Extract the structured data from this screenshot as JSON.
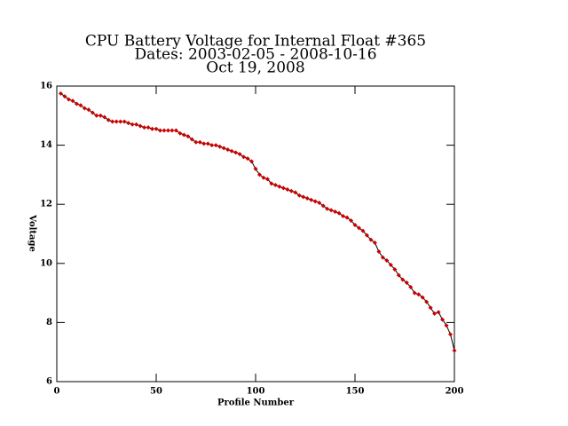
{
  "chart_data": {
    "type": "line",
    "title": "CPU Battery Voltage for Internal Float #365",
    "subtitle": "Dates:  2003-02-05 -  2008-10-16",
    "date": "Oct 19, 2008",
    "x_label": "Profile Number",
    "y_label": "Voltage",
    "x": [
      2,
      4,
      6,
      8,
      10,
      12,
      14,
      16,
      18,
      20,
      22,
      24,
      26,
      28,
      30,
      32,
      34,
      36,
      38,
      40,
      42,
      44,
      46,
      48,
      50,
      52,
      54,
      56,
      58,
      60,
      62,
      64,
      66,
      68,
      70,
      72,
      74,
      76,
      78,
      80,
      82,
      84,
      86,
      88,
      90,
      92,
      94,
      96,
      98,
      100,
      102,
      104,
      106,
      108,
      110,
      112,
      114,
      116,
      118,
      120,
      122,
      124,
      126,
      128,
      130,
      132,
      134,
      136,
      138,
      140,
      142,
      144,
      146,
      148,
      150,
      152,
      154,
      156,
      158,
      160,
      162,
      164,
      166,
      168,
      170,
      172,
      174,
      176,
      178,
      180,
      182,
      184,
      186,
      188,
      190,
      192,
      194,
      196,
      198,
      200
    ],
    "series": [
      {
        "name": "Voltage",
        "color": "#cc0000",
        "line_color": "#000000",
        "values": [
          15.75,
          15.65,
          15.55,
          15.5,
          15.4,
          15.35,
          15.25,
          15.2,
          15.1,
          15.0,
          15.0,
          14.95,
          14.85,
          14.8,
          14.8,
          14.8,
          14.8,
          14.75,
          14.7,
          14.7,
          14.65,
          14.6,
          14.6,
          14.55,
          14.55,
          14.5,
          14.5,
          14.5,
          14.5,
          14.5,
          14.4,
          14.35,
          14.3,
          14.2,
          14.1,
          14.1,
          14.05,
          14.05,
          14.0,
          14.0,
          13.95,
          13.9,
          13.85,
          13.8,
          13.75,
          13.7,
          13.6,
          13.55,
          13.45,
          13.2,
          13.0,
          12.9,
          12.85,
          12.7,
          12.65,
          12.6,
          12.55,
          12.5,
          12.45,
          12.4,
          12.3,
          12.25,
          12.2,
          12.15,
          12.1,
          12.05,
          11.95,
          11.85,
          11.8,
          11.75,
          11.7,
          11.6,
          11.55,
          11.45,
          11.3,
          11.2,
          11.1,
          10.95,
          10.8,
          10.7,
          10.4,
          10.2,
          10.1,
          9.95,
          9.8,
          9.6,
          9.45,
          9.35,
          9.2,
          9.0,
          8.95,
          8.85,
          8.7,
          8.5,
          8.3,
          8.35,
          8.1,
          7.9,
          7.6,
          7.05
        ]
      }
    ],
    "xlim": [
      0,
      200
    ],
    "xticks": [
      0,
      50,
      100,
      150,
      200
    ],
    "ylim": [
      6,
      16
    ],
    "yticks": [
      6,
      8,
      10,
      12,
      14,
      16
    ],
    "grid": false
  }
}
